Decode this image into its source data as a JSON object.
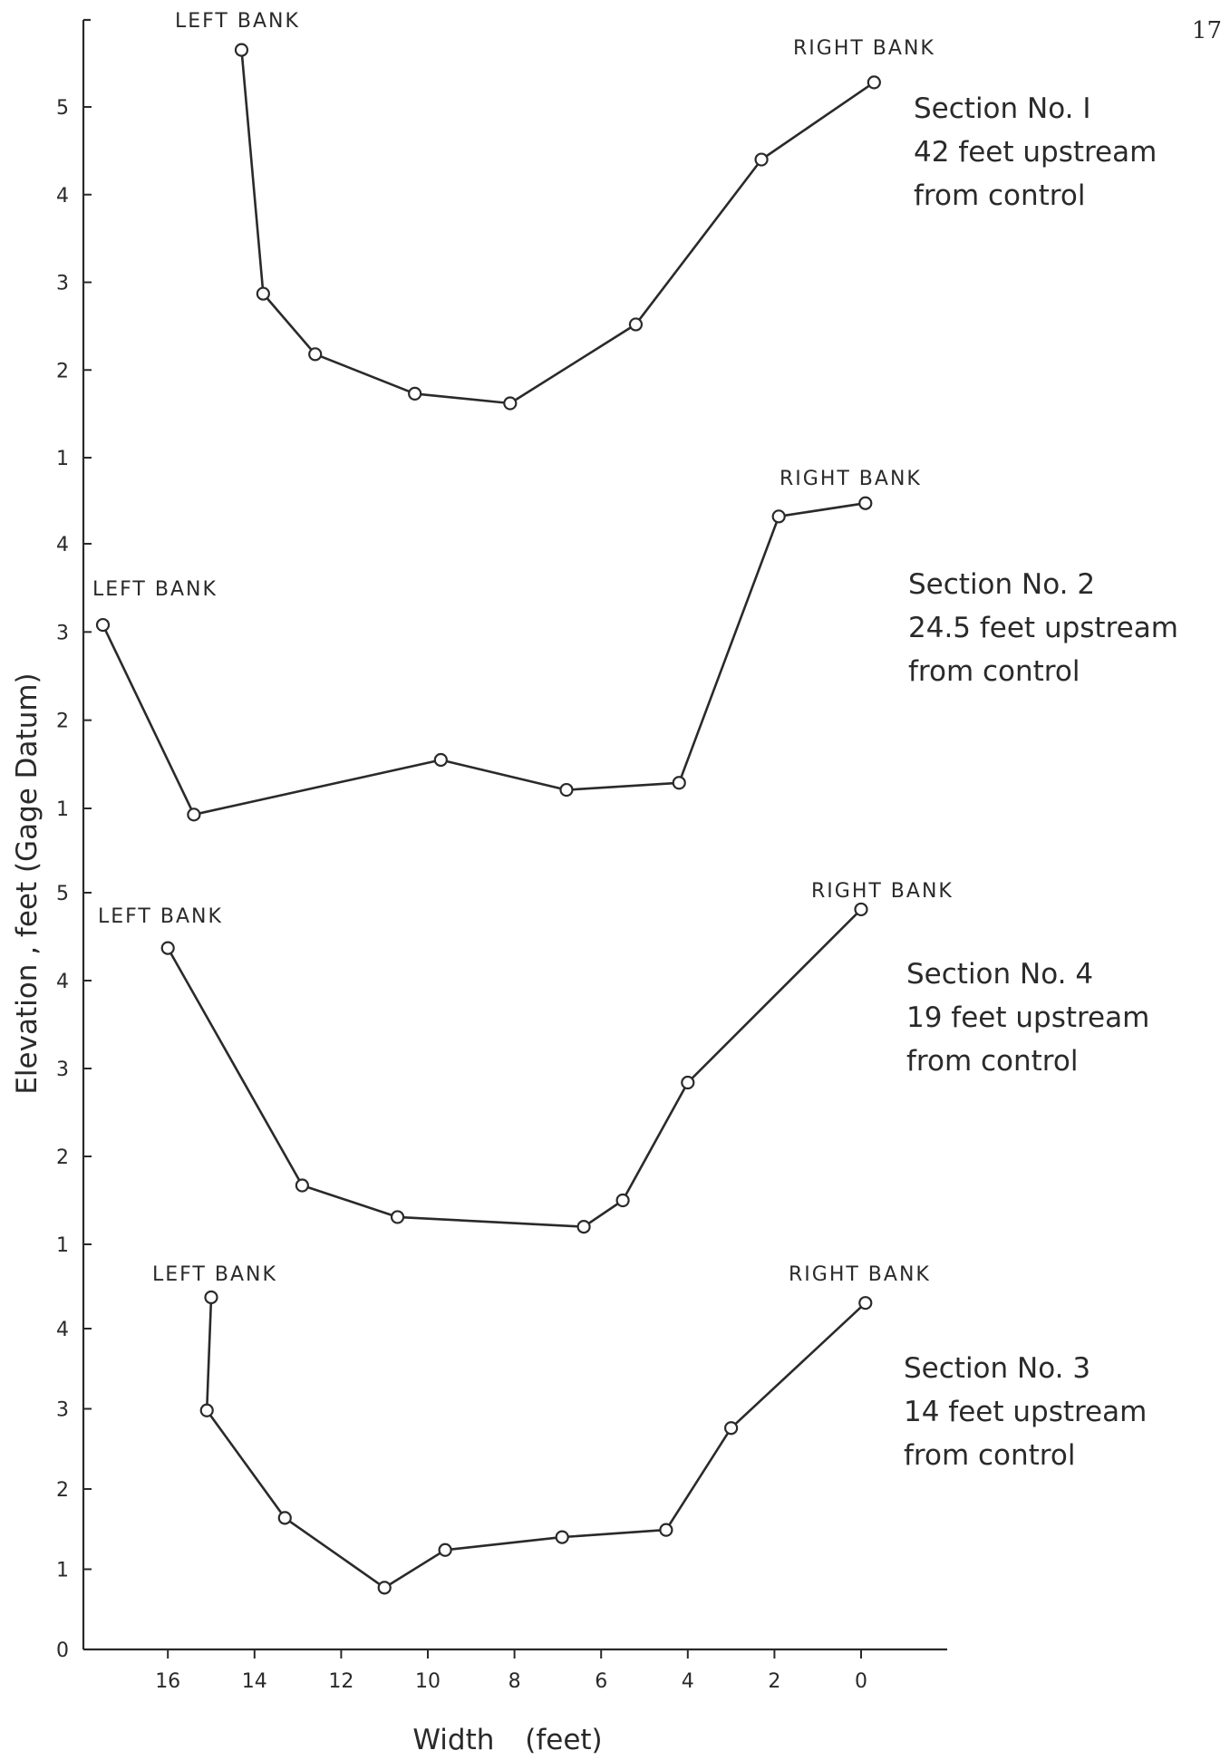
{
  "page_number": "17",
  "chart_data": {
    "type": "line",
    "ylabel": "Elevation , feet (Gage Datum)",
    "xlabel": "Width (feet)",
    "x_reversed": true,
    "xlim": [
      18.2,
      -2
    ],
    "x_ticks": [
      16,
      14,
      12,
      10,
      8,
      6,
      4,
      2,
      0
    ],
    "x_tick_labels": [
      "16",
      "14",
      "12",
      "10",
      "8",
      "6",
      "4",
      "2",
      "0"
    ],
    "grid": false,
    "panels": [
      {
        "section_lines": [
          "Section No. I",
          "42 feet upstream",
          "from control"
        ],
        "left_bank_label": "LEFT BANK",
        "right_bank_label": "RIGHT BANK",
        "ylim": [
          1,
          5.75
        ],
        "y_ticks": [
          1,
          2,
          3,
          4,
          5
        ],
        "y_tick_labels": [
          "1",
          "2",
          "3",
          "4",
          "5"
        ],
        "points": [
          {
            "x": 14.3,
            "y": 5.65
          },
          {
            "x": 13.8,
            "y": 2.87
          },
          {
            "x": 12.6,
            "y": 2.18
          },
          {
            "x": 10.3,
            "y": 1.73
          },
          {
            "x": 8.1,
            "y": 1.62
          },
          {
            "x": 5.2,
            "y": 2.52
          },
          {
            "x": 2.3,
            "y": 4.4
          },
          {
            "x": -0.3,
            "y": 5.28
          }
        ]
      },
      {
        "section_lines": [
          "Section No. 2",
          "24.5 feet upstream",
          "from control"
        ],
        "left_bank_label": "LEFT BANK",
        "right_bank_label": "RIGHT BANK",
        "ylim": [
          0.7,
          4.8
        ],
        "y_ticks": [
          1,
          2,
          3,
          4
        ],
        "y_tick_labels": [
          "1",
          "2",
          "3",
          "4"
        ],
        "points": [
          {
            "x": 17.5,
            "y": 3.08
          },
          {
            "x": 15.4,
            "y": 0.93
          },
          {
            "x": 9.7,
            "y": 1.55
          },
          {
            "x": 6.8,
            "y": 1.21
          },
          {
            "x": 4.2,
            "y": 1.29
          },
          {
            "x": 1.9,
            "y": 4.31
          },
          {
            "x": -0.1,
            "y": 4.46
          }
        ]
      },
      {
        "section_lines": [
          "Section No. 4",
          "19 feet upstream",
          "from control"
        ],
        "left_bank_label": "LEFT BANK",
        "right_bank_label": "RIGHT BANK",
        "ylim": [
          1,
          5
        ],
        "y_ticks": [
          1,
          2,
          3,
          4,
          5
        ],
        "y_tick_labels": [
          "1",
          "2",
          "3",
          "4",
          "5"
        ],
        "points": [
          {
            "x": 16,
            "y": 4.37
          },
          {
            "x": 12.9,
            "y": 1.67
          },
          {
            "x": 10.7,
            "y": 1.31
          },
          {
            "x": 6.4,
            "y": 1.2
          },
          {
            "x": 5.5,
            "y": 1.5
          },
          {
            "x": 4,
            "y": 2.84
          },
          {
            "x": 0,
            "y": 4.81
          }
        ]
      },
      {
        "section_lines": [
          "Section No. 3",
          "14 feet upstream",
          "from control"
        ],
        "left_bank_label": "LEFT BANK",
        "right_bank_label": "RIGHT BANK",
        "ylim": [
          0,
          5
        ],
        "y_ticks": [
          0,
          1,
          2,
          3,
          4
        ],
        "y_tick_labels": [
          "0",
          "1",
          "2",
          "3",
          "4"
        ],
        "points": [
          {
            "x": 15,
            "y": 4.39
          },
          {
            "x": 15.1,
            "y": 2.98
          },
          {
            "x": 13.3,
            "y": 1.64
          },
          {
            "x": 11,
            "y": 0.77
          },
          {
            "x": 9.6,
            "y": 1.24
          },
          {
            "x": 6.9,
            "y": 1.4
          },
          {
            "x": 4.5,
            "y": 1.49
          },
          {
            "x": 3,
            "y": 2.76
          },
          {
            "x": -0.1,
            "y": 4.32
          }
        ]
      }
    ]
  }
}
